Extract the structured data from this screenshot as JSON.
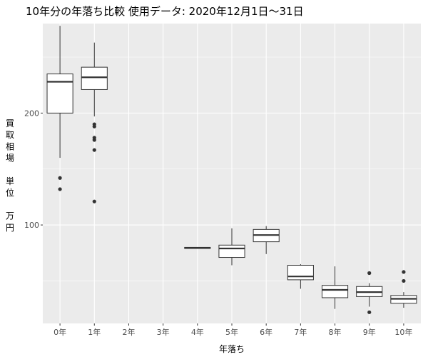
{
  "chart_data": {
    "type": "box",
    "title": "10年分の年落ち比較 使用データ: 2020年12月1日～31日",
    "xlabel": "年落ち",
    "ylabel_chars": [
      "買",
      "取",
      "相",
      "場",
      "",
      "単",
      "位",
      "",
      "万",
      "円"
    ],
    "categories": [
      "0年",
      "1年",
      "2年",
      "3年",
      "4年",
      "5年",
      "6年",
      "7年",
      "8年",
      "9年",
      "10年"
    ],
    "y_ticks": [
      100,
      200
    ],
    "ylim": [
      12,
      280
    ],
    "boxes": [
      {
        "category": "0年",
        "lower_whisker": 160,
        "q1": 200,
        "median": 228,
        "q3": 235,
        "upper_whisker": 278,
        "outliers": [
          142,
          132
        ]
      },
      {
        "category": "1年",
        "lower_whisker": 197,
        "q1": 221,
        "median": 232,
        "q3": 241,
        "upper_whisker": 263,
        "outliers": [
          190,
          188,
          178,
          176,
          167,
          121
        ]
      },
      {
        "category": "2年",
        "empty": true
      },
      {
        "category": "3年",
        "empty": true
      },
      {
        "category": "4年",
        "lower_whisker": 79,
        "q1": 79,
        "median": 79.5,
        "q3": 80,
        "upper_whisker": 80,
        "outliers": []
      },
      {
        "category": "5年",
        "lower_whisker": 64,
        "q1": 71,
        "median": 79,
        "q3": 82,
        "upper_whisker": 97,
        "outliers": []
      },
      {
        "category": "6年",
        "lower_whisker": 74,
        "q1": 85,
        "median": 91,
        "q3": 96,
        "upper_whisker": 99,
        "outliers": []
      },
      {
        "category": "7年",
        "lower_whisker": 43,
        "q1": 51,
        "median": 54,
        "q3": 64,
        "upper_whisker": 65,
        "outliers": []
      },
      {
        "category": "8年",
        "lower_whisker": 25,
        "q1": 35,
        "median": 42,
        "q3": 46,
        "upper_whisker": 63,
        "outliers": []
      },
      {
        "category": "9年",
        "lower_whisker": 27,
        "q1": 36,
        "median": 40,
        "q3": 45,
        "upper_whisker": 48,
        "outliers": [
          57,
          22
        ]
      },
      {
        "category": "10年",
        "lower_whisker": 26,
        "q1": 30,
        "median": 34,
        "q3": 37,
        "upper_whisker": 40,
        "outliers": [
          58,
          50
        ]
      }
    ],
    "colors": {
      "panel": "#ebebeb",
      "grid": "#ffffff",
      "box_fill": "#ffffff",
      "box_line": "#333333"
    }
  }
}
